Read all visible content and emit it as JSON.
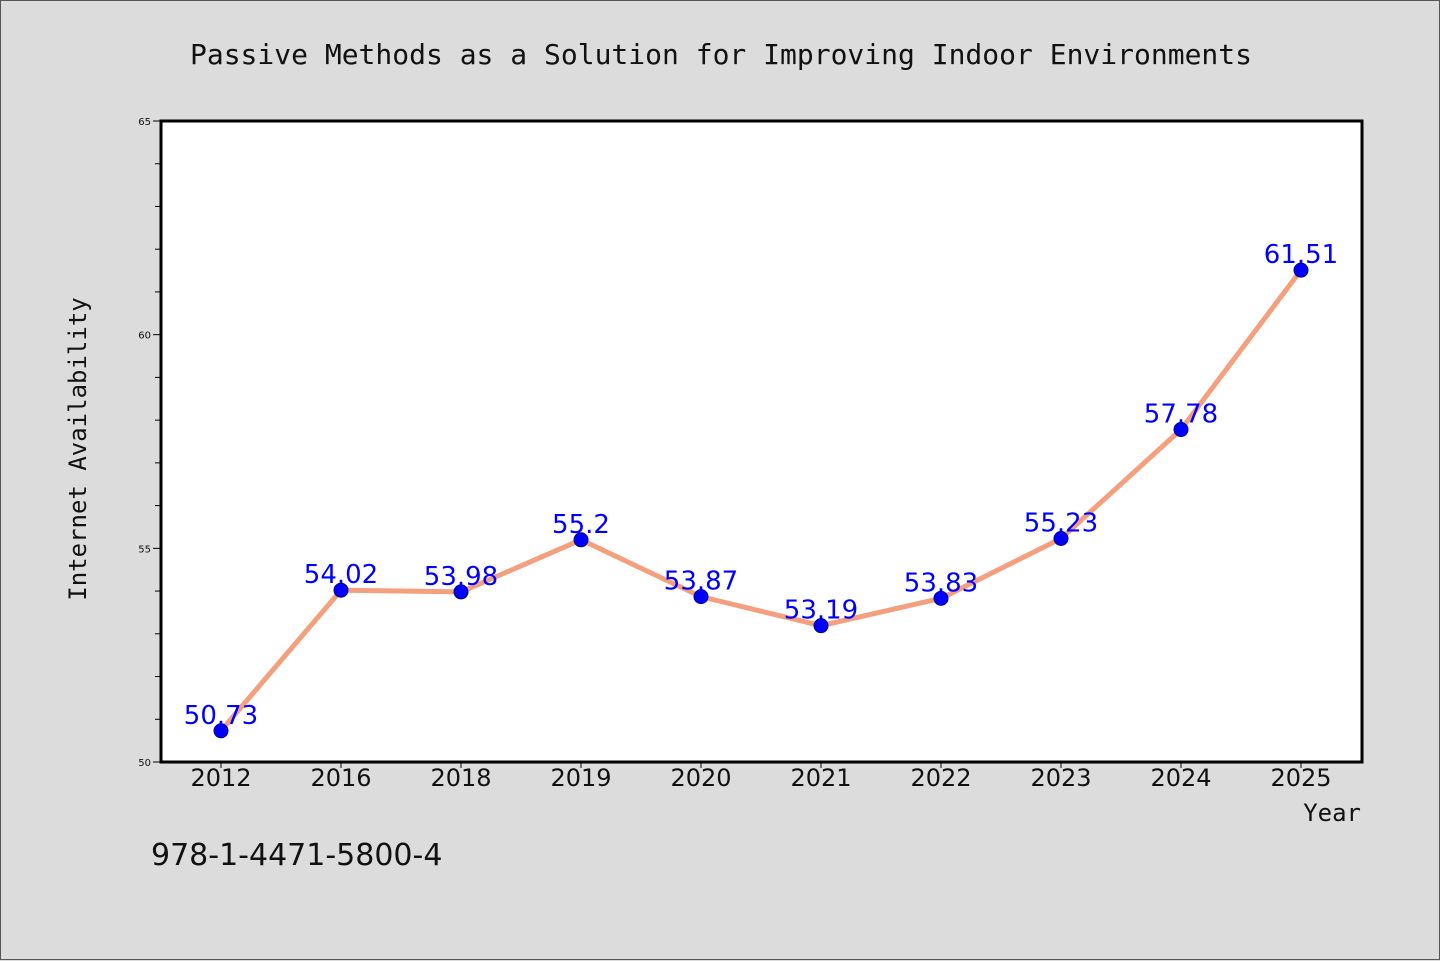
{
  "chart_data": {
    "type": "line",
    "title": "Passive Methods as a Solution for Improving Indoor Environments",
    "xlabel": "Year",
    "ylabel": "Internet Availability",
    "categories": [
      "2012",
      "2016",
      "2018",
      "2019",
      "2020",
      "2021",
      "2022",
      "2023",
      "2024",
      "2025"
    ],
    "series": [
      {
        "values": [
          50.73,
          54.02,
          53.98,
          55.2,
          53.87,
          53.19,
          53.83,
          55.23,
          57.78,
          61.51
        ],
        "data_labels": [
          "50.73",
          "54.02",
          "53.98",
          "55.2",
          "53.87",
          "53.19",
          "53.83",
          "55.23",
          "57.78",
          "61.51"
        ]
      }
    ],
    "ylim": [
      50,
      65
    ],
    "yticks": [
      50,
      55,
      60,
      65
    ],
    "ytick_labels": [
      "50",
      "55",
      "60",
      "65"
    ],
    "grid": false,
    "legend": "none",
    "colors": {
      "line": "#f4a07e",
      "marker": "#0000ff",
      "marker_edge": "#00008b",
      "data_label": "#0000ff",
      "plot_background": "#ffffff",
      "figure_background": "#dcdcdc"
    }
  },
  "footnote": "978-1-4471-5800-4"
}
